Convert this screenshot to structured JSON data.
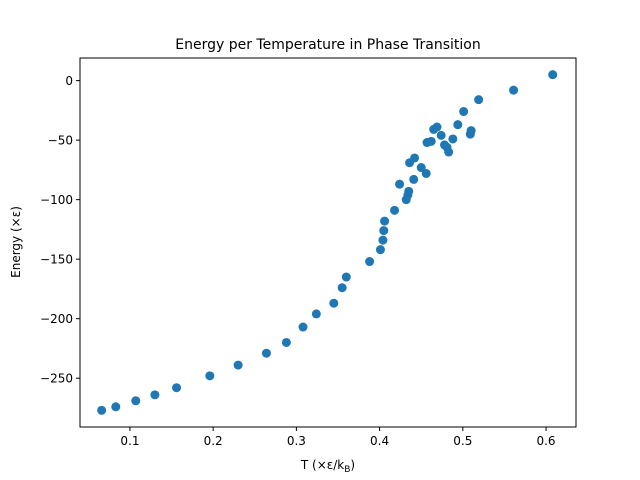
{
  "chart_data": {
    "type": "scatter",
    "title": "Energy per Temperature in Phase Transition",
    "xlabel": "T (×ε/k",
    "xlabel_sub": "B",
    "xlabel_close": ")",
    "ylabel": "Energy (×ε)",
    "xlim": [
      0.04,
      0.636
    ],
    "ylim": [
      -291,
      19
    ],
    "xticks": [
      0.1,
      0.2,
      0.3,
      0.4,
      0.5,
      0.6
    ],
    "xtick_labels": [
      "0.1",
      "0.2",
      "0.3",
      "0.4",
      "0.5",
      "0.6"
    ],
    "yticks": [
      -250,
      -200,
      -150,
      -100,
      -50,
      0
    ],
    "ytick_labels": [
      "−250",
      "−200",
      "−150",
      "−100",
      "−50",
      "0"
    ],
    "grid": false,
    "legend": "none",
    "marker_color": "#1f77b4",
    "series": [
      {
        "x": [
          0.066,
          0.083,
          0.107,
          0.13,
          0.156,
          0.196,
          0.23,
          0.264,
          0.288,
          0.308,
          0.324,
          0.345,
          0.355,
          0.36,
          0.388,
          0.401,
          0.404,
          0.405,
          0.406,
          0.418,
          0.424,
          0.432,
          0.434,
          0.435,
          0.436,
          0.441,
          0.442,
          0.45,
          0.456,
          0.457,
          0.462,
          0.465,
          0.469,
          0.474,
          0.478,
          0.481,
          0.483,
          0.488,
          0.494,
          0.501,
          0.509,
          0.51,
          0.519,
          0.561,
          0.608
        ],
        "y": [
          -277,
          -274,
          -269,
          -264,
          -258,
          -248,
          -239,
          -229,
          -220,
          -207,
          -196,
          -187,
          -174,
          -165,
          -152,
          -142,
          -134,
          -126,
          -118,
          -109,
          -87,
          -100,
          -96,
          -93,
          -69,
          -83,
          -65,
          -73,
          -78,
          -52,
          -51,
          -41,
          -39,
          -46,
          -54,
          -56,
          -60,
          -49,
          -37,
          -26,
          -45,
          -42,
          -16,
          -8,
          5
        ]
      }
    ]
  }
}
